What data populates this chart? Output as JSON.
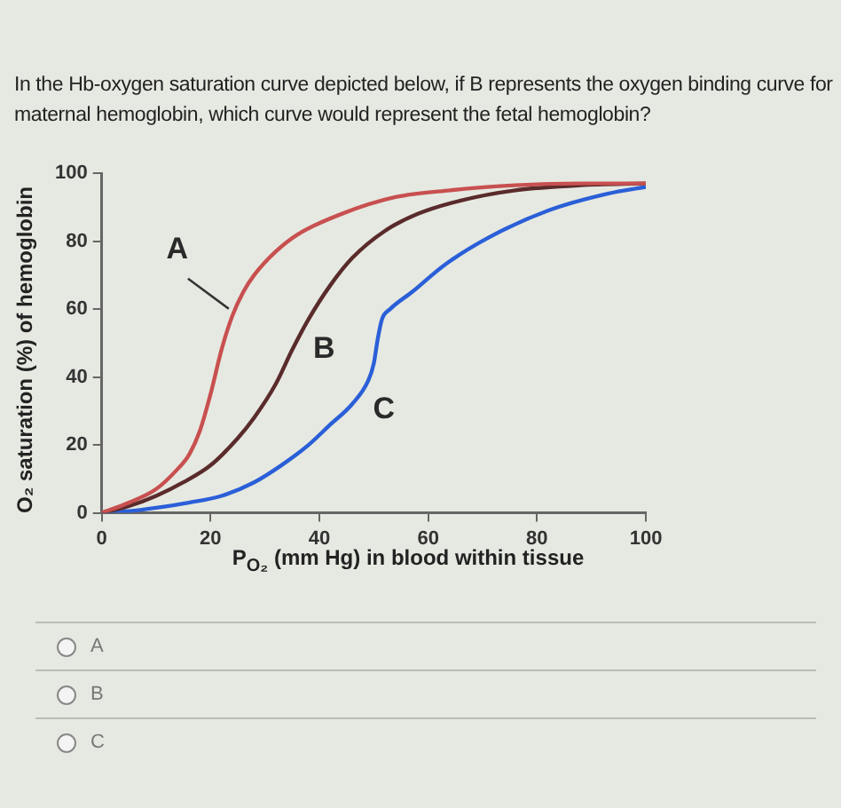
{
  "chart_data": {
    "type": "line",
    "title": "In the Hb-oxygen saturation curve depicted below, if B represents the oxygen binding curve for maternal hemoglobin, which curve would represent the fetal hemoglobin?",
    "xlabel": "P$_{O₂}$ (mm Hg) in blood within tissue",
    "ylabel": "O₂ saturation (%) of hemoglobin",
    "xlim": [
      0,
      100
    ],
    "xticks": [
      0,
      20,
      40,
      60,
      80,
      100
    ],
    "ylim": [
      0,
      100
    ],
    "yticks": [
      0,
      20,
      40,
      60,
      80,
      100
    ],
    "grid": false,
    "legend": false,
    "marker": "none",
    "line_style": "solid",
    "series": [
      {
        "name": "A",
        "color": "#c85050",
        "x": [
          0,
          5,
          10,
          14,
          16,
          18,
          20,
          22,
          24,
          26,
          28,
          32,
          36,
          44,
          54,
          64,
          76,
          88,
          100
        ],
        "values": [
          0,
          3,
          7,
          13,
          17,
          24,
          35,
          48,
          58,
          65,
          70,
          77,
          82,
          88,
          93,
          95,
          96.5,
          97,
          97
        ]
      },
      {
        "name": "B",
        "color": "#5a2b2b",
        "x": [
          0,
          5,
          10,
          15,
          20,
          25,
          28,
          32,
          35,
          38,
          42,
          46,
          52,
          58,
          66,
          76,
          88,
          100
        ],
        "values": [
          0,
          2,
          5,
          9,
          14,
          22,
          28,
          38,
          48,
          57,
          67,
          75,
          83,
          88,
          92,
          95,
          96.5,
          97
        ]
      },
      {
        "name": "C",
        "color": "#2a5fd8",
        "x": [
          0,
          5,
          10,
          16,
          22,
          28,
          33,
          38,
          42,
          46,
          49,
          50,
          50.7,
          51.5,
          53,
          57,
          63,
          71,
          82,
          93,
          100
        ],
        "values": [
          0,
          0.5,
          1.5,
          3,
          5,
          9,
          14,
          20,
          26,
          32,
          39,
          44,
          51,
          57,
          60,
          65,
          73,
          81,
          89,
          94,
          96
        ]
      }
    ],
    "annotations": [
      "A",
      "B",
      "C"
    ]
  }
}
